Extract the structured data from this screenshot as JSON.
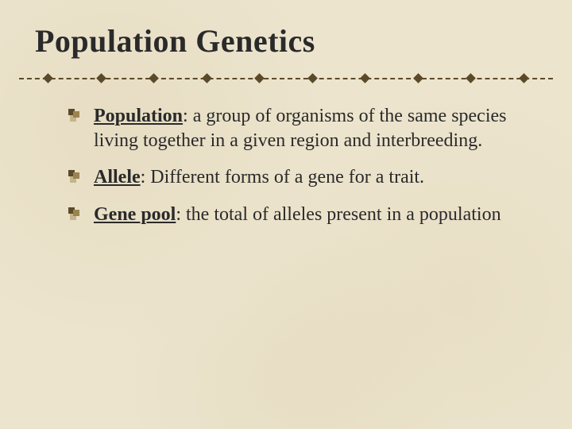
{
  "slide": {
    "title": "Population Genetics",
    "bullets": [
      {
        "term": "Population",
        "definition": ": a group of organisms of the same species living together in a given region and interbreeding."
      },
      {
        "term": "Allele",
        "definition": ": Different forms of a gene for a trait."
      },
      {
        "term": "Gene pool",
        "definition": ": the total of alleles present in a population"
      }
    ]
  },
  "style": {
    "background_color": "#ece4cd",
    "title_color": "#2a2a2a",
    "title_fontsize": 40,
    "body_fontsize": 24,
    "divider_color": "#5b4a2a",
    "divider_square_count": 10,
    "bullet_colors": [
      "#5b4a2a",
      "#9a8350",
      "#c4b58a"
    ],
    "font_family": "Times New Roman"
  }
}
